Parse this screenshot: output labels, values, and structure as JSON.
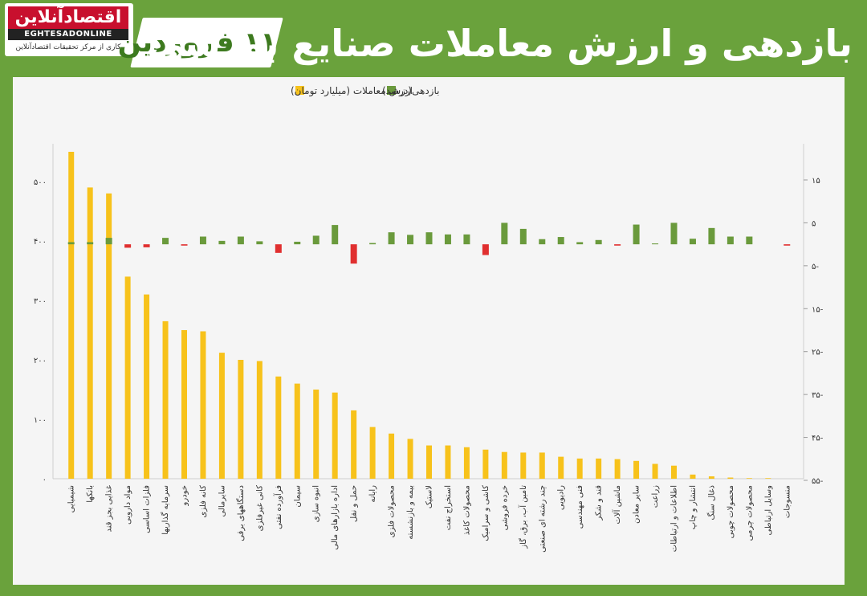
{
  "header": {
    "title": "بازدهی و ارزش معاملات صنایع بورسی",
    "date": "۱۱ فروردین"
  },
  "logo": {
    "name": "اقتصادآنلاین",
    "latin": "EGHTESADONLINE",
    "tagline": "کاری از مرکز تحقیقات اقتصادآنلاین"
  },
  "colors": {
    "value_bar": "#f7c21b",
    "return_positive": "#6a9a3c",
    "return_negative": "#e02f2f",
    "frame": "#6aa23c"
  },
  "chart_data": {
    "type": "bar",
    "categories": [
      "شیمیایی",
      "بانکها",
      "غذایی بجز قند",
      "مواد دارویی",
      "فلزات اساسی",
      "سرمایه گذاریها",
      "خودرو",
      "کانه فلزی",
      "سایرمالی",
      "دستگاههای برقی",
      "کانی غیرفلزی",
      "فرآورده نفتی",
      "سیمان",
      "انبوه سازی",
      "اداره بازارهای مالی",
      "حمل و نقل",
      "رایانه",
      "محصولات فلزی",
      "بیمه و بازنشسته",
      "لاستیک",
      "استخراج نفت",
      "محصولات کاغذ",
      "کاشی و سرامیک",
      "خرده فروشی",
      "تامین آب، برق، گاز",
      "چند رشته ای صنعتی",
      "رادیویی",
      "فنی مهندسی",
      "قند و شکر",
      "ماشین آلات",
      "سایر معادن",
      "زراعت",
      "اطلاعات و ارتباطات",
      "انتشار و چاپ",
      "ذغال سنگ",
      "محصولات چوبی",
      "محصولات چرمی",
      "وسایل ارتباطی",
      "منسوجات"
    ],
    "series": [
      {
        "name": "ارزش معاملات (میلیارد تومان)",
        "axis": "left",
        "values": [
          550,
          490,
          480,
          340,
          310,
          265,
          250,
          248,
          212,
          200,
          198,
          172,
          160,
          150,
          145,
          115,
          87,
          76,
          67,
          56,
          56,
          53,
          49,
          45,
          44,
          44,
          37,
          34,
          34,
          33,
          30,
          25,
          22,
          7,
          4,
          2,
          1,
          1,
          0
        ]
      },
      {
        "name": "بازدهی(درصد)",
        "axis": "right",
        "values": [
          0.5,
          0.5,
          1.5,
          -0.8,
          -0.7,
          1.5,
          -0.3,
          1.8,
          0.8,
          1.8,
          0.7,
          -2,
          0.6,
          2,
          4.5,
          -4.5,
          0.3,
          2.8,
          2.2,
          2.8,
          2.3,
          2.3,
          -2.5,
          5,
          3.6,
          1.2,
          1.7,
          0.5,
          1,
          -0.3,
          4.6,
          0.2,
          5,
          1.3,
          3.8,
          1.8,
          1.8,
          0,
          -0.3
        ]
      }
    ],
    "left_axis": {
      "ylim": [
        0,
        550
      ],
      "ticks": [
        "۰",
        "۱۰۰",
        "۲۰۰",
        "۳۰۰",
        "۴۰۰",
        "۵۰۰"
      ]
    },
    "right_axis": {
      "ylim": [
        -55,
        15
      ],
      "ticks": [
        "۱۵",
        "۵",
        "۵-",
        "۱۵-",
        "۲۵-",
        "۳۵-",
        "۴۵-",
        "۵۵-"
      ]
    },
    "legend_position": "top-right",
    "grid": false
  }
}
